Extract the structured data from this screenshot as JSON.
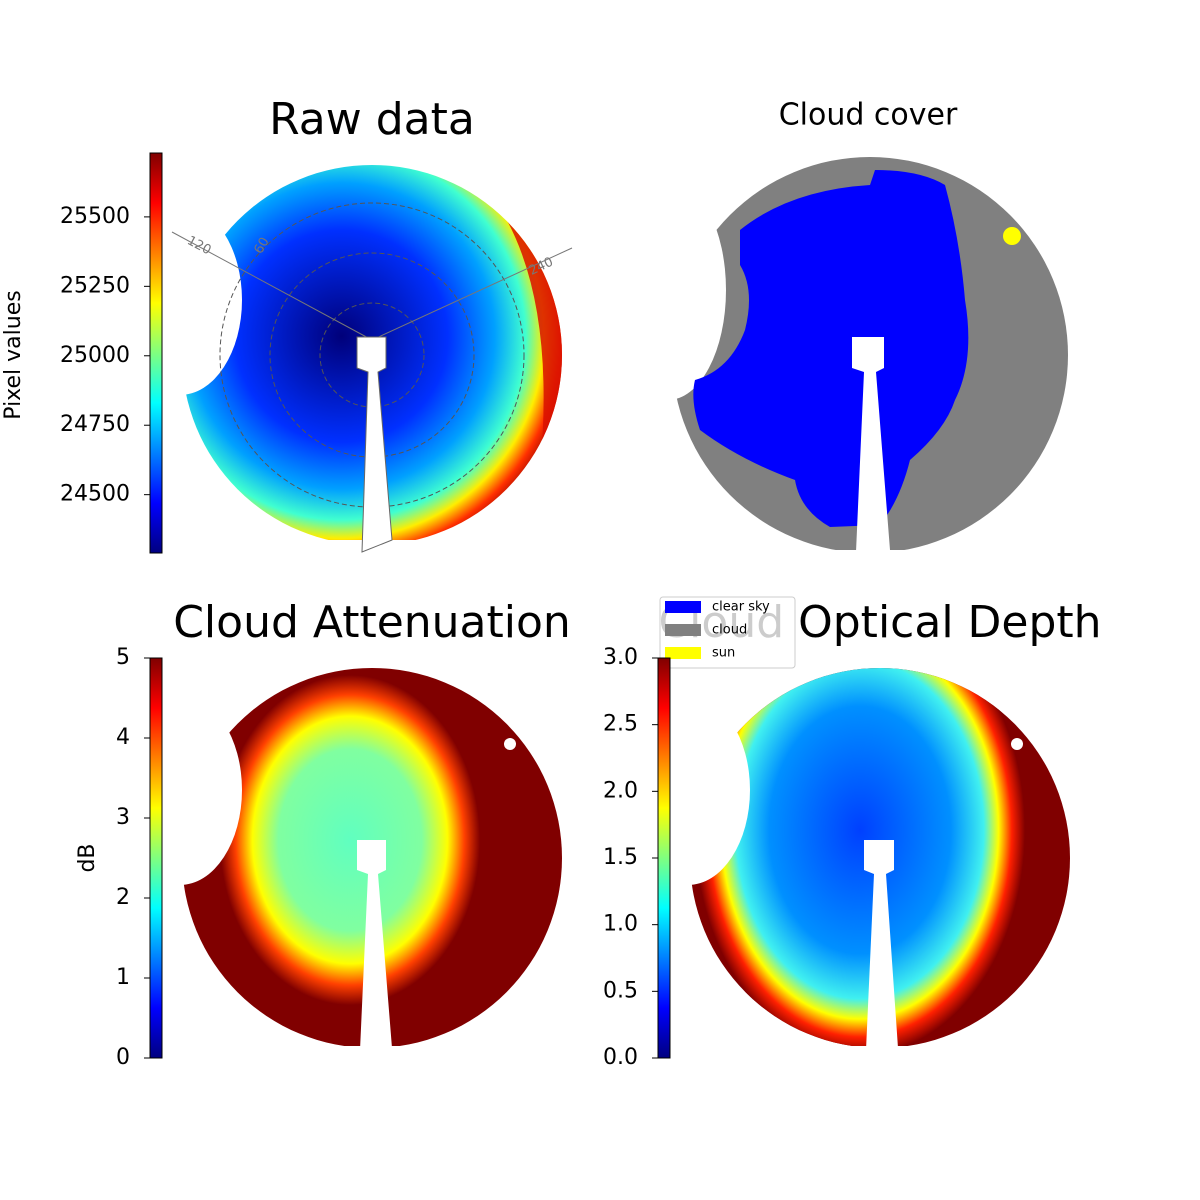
{
  "chart_data": [
    {
      "type": "image",
      "title": "Raw data",
      "colorbar_label": "Pixel values",
      "colormap": "jet",
      "ylim": [
        24290,
        25730
      ],
      "yticks": [
        24500,
        24750,
        25000,
        25250,
        25500
      ],
      "annotations": [
        "120",
        "60",
        "240"
      ]
    },
    {
      "type": "categorical_image",
      "title": "Cloud cover",
      "legend": "lower left",
      "series": [
        {
          "name": "clear sky",
          "color": "#0000ff"
        },
        {
          "name": "cloud",
          "color": "#808080"
        },
        {
          "name": "sun",
          "color": "#ffff00"
        }
      ]
    },
    {
      "type": "image",
      "title": "Cloud Attenuation",
      "colorbar_label": "dB",
      "colormap": "jet",
      "ylim": [
        0,
        5
      ],
      "yticks": [
        0,
        1,
        2,
        3,
        4,
        5
      ]
    },
    {
      "type": "image",
      "title": "Cloud Optical Depth",
      "colormap": "jet",
      "ylim": [
        0,
        3
      ],
      "yticks": [
        {
          "value": 0,
          "label": "0.0"
        },
        {
          "value": 0.5,
          "label": "0.5"
        },
        {
          "value": 1,
          "label": "1.0"
        },
        {
          "value": 1.5,
          "label": "1.5"
        },
        {
          "value": 2,
          "label": "2.0"
        },
        {
          "value": 2.5,
          "label": "2.5"
        },
        {
          "value": 3,
          "label": "3.0"
        }
      ]
    }
  ]
}
